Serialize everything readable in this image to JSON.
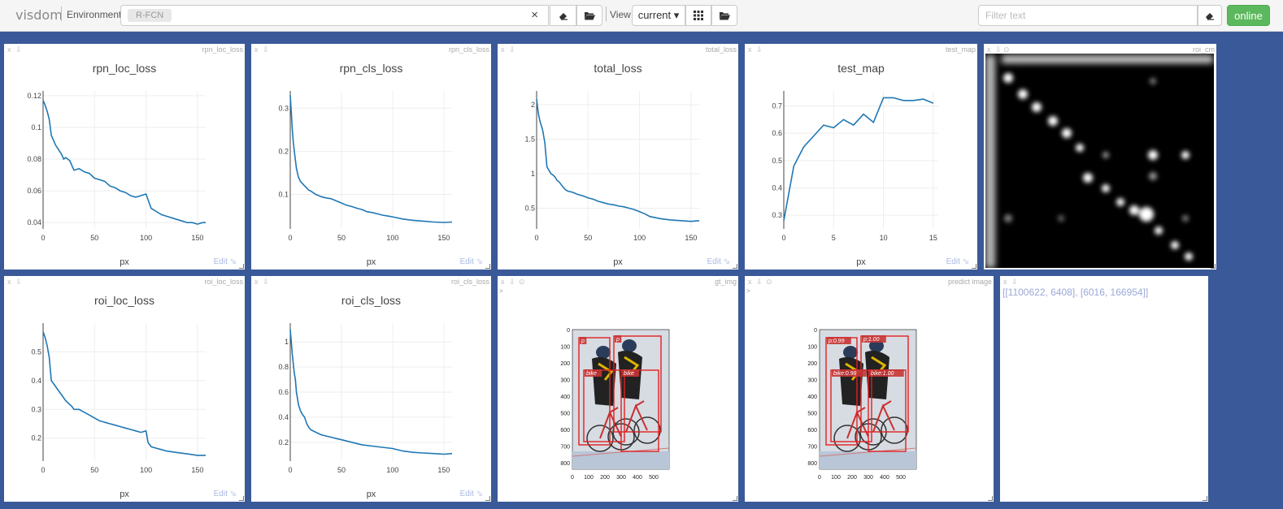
{
  "topbar": {
    "brand": "visdom",
    "env_label": "Environment",
    "env_chip": "R-FCN",
    "clear_symbol": "×",
    "view_label": "View",
    "view_value": "current ▾",
    "filter_placeholder": "Filter text",
    "online_label": "online"
  },
  "pane_controls": {
    "close": "x",
    "download": "⇩",
    "reset": "⊙",
    "edit": "Edit ⬂",
    "arrow": ">"
  },
  "charts": [
    {
      "id": "rpn_loc_loss",
      "title": "rpn_loc_loss",
      "xlabel": "px",
      "x_ticks": [
        0,
        50,
        100,
        150
      ],
      "y_ticks": [
        0.04,
        0.06,
        0.08,
        0.1,
        0.12
      ],
      "y_tick_labels": [
        "0.04",
        "0.06",
        "0.08",
        "0.1",
        "0.12"
      ],
      "xlim": [
        0,
        158
      ],
      "ylim": [
        0.036,
        0.123
      ],
      "chart_data": {
        "type": "line",
        "x": [
          0,
          2,
          4,
          6,
          8,
          10,
          12,
          14,
          16,
          18,
          20,
          22,
          24,
          26,
          28,
          30,
          35,
          40,
          45,
          50,
          55,
          60,
          65,
          70,
          75,
          80,
          85,
          90,
          95,
          100,
          105,
          110,
          115,
          120,
          125,
          130,
          135,
          140,
          145,
          150,
          155,
          158
        ],
        "y": [
          0.117,
          0.114,
          0.11,
          0.105,
          0.095,
          0.092,
          0.089,
          0.087,
          0.085,
          0.083,
          0.08,
          0.081,
          0.08,
          0.079,
          0.076,
          0.073,
          0.074,
          0.072,
          0.071,
          0.068,
          0.067,
          0.066,
          0.063,
          0.062,
          0.06,
          0.059,
          0.057,
          0.056,
          0.057,
          0.058,
          0.049,
          0.047,
          0.045,
          0.044,
          0.043,
          0.042,
          0.041,
          0.04,
          0.04,
          0.039,
          0.04,
          0.04
        ]
      }
    },
    {
      "id": "rpn_cls_loss",
      "title": "rpn_cls_loss",
      "xlabel": "px",
      "x_ticks": [
        0,
        50,
        100,
        150
      ],
      "y_ticks": [
        0.1,
        0.2,
        0.3
      ],
      "y_tick_labels": [
        "0.1",
        "0.2",
        "0.3"
      ],
      "xlim": [
        0,
        158
      ],
      "ylim": [
        0.02,
        0.34
      ],
      "chart_data": {
        "type": "line",
        "x": [
          0,
          1,
          2,
          3,
          4,
          5,
          6,
          8,
          10,
          12,
          14,
          16,
          18,
          20,
          25,
          30,
          35,
          40,
          45,
          50,
          55,
          60,
          65,
          70,
          75,
          80,
          85,
          90,
          95,
          100,
          110,
          120,
          130,
          140,
          150,
          158
        ],
        "y": [
          0.33,
          0.29,
          0.25,
          0.22,
          0.2,
          0.18,
          0.16,
          0.14,
          0.13,
          0.125,
          0.12,
          0.115,
          0.11,
          0.108,
          0.1,
          0.095,
          0.092,
          0.09,
          0.085,
          0.08,
          0.075,
          0.072,
          0.068,
          0.065,
          0.06,
          0.058,
          0.055,
          0.052,
          0.05,
          0.048,
          0.043,
          0.04,
          0.038,
          0.036,
          0.035,
          0.036
        ]
      }
    },
    {
      "id": "total_loss",
      "title": "total_loss",
      "xlabel": "px",
      "x_ticks": [
        0,
        50,
        100,
        150
      ],
      "y_ticks": [
        0.5,
        1,
        1.5,
        2
      ],
      "y_tick_labels": [
        "0.5",
        "1",
        "1.5",
        "2"
      ],
      "xlim": [
        0,
        158
      ],
      "ylim": [
        0.2,
        2.2
      ],
      "chart_data": {
        "type": "line",
        "x": [
          0,
          1,
          2,
          3,
          4,
          5,
          6,
          8,
          10,
          12,
          14,
          16,
          18,
          20,
          22,
          25,
          28,
          30,
          35,
          40,
          45,
          50,
          55,
          60,
          65,
          70,
          75,
          80,
          85,
          90,
          95,
          100,
          105,
          110,
          120,
          130,
          140,
          150,
          158
        ],
        "y": [
          2.08,
          1.95,
          1.85,
          1.78,
          1.72,
          1.68,
          1.62,
          1.45,
          1.1,
          1.05,
          1.0,
          0.98,
          0.95,
          0.9,
          0.88,
          0.82,
          0.77,
          0.75,
          0.73,
          0.7,
          0.68,
          0.65,
          0.63,
          0.6,
          0.58,
          0.56,
          0.55,
          0.53,
          0.52,
          0.5,
          0.48,
          0.45,
          0.42,
          0.38,
          0.35,
          0.33,
          0.32,
          0.31,
          0.32
        ]
      }
    },
    {
      "id": "test_map",
      "title": "test_map",
      "xlabel": "px",
      "x_ticks": [
        0,
        5,
        10,
        15
      ],
      "y_ticks": [
        0.3,
        0.4,
        0.5,
        0.6,
        0.7
      ],
      "y_tick_labels": [
        "0.3",
        "0.4",
        "0.5",
        "0.6",
        "0.7"
      ],
      "xlim": [
        0,
        15.5
      ],
      "ylim": [
        0.25,
        0.755
      ],
      "chart_data": {
        "type": "line",
        "x": [
          0,
          1,
          2,
          3,
          4,
          5,
          6,
          7,
          8,
          9,
          10,
          11,
          12,
          13,
          14,
          15
        ],
        "y": [
          0.28,
          0.48,
          0.55,
          0.59,
          0.63,
          0.62,
          0.65,
          0.63,
          0.67,
          0.64,
          0.73,
          0.73,
          0.72,
          0.72,
          0.725,
          0.71
        ]
      }
    },
    {
      "id": "roi_loc_loss",
      "title": "roi_loc_loss",
      "xlabel": "px",
      "x_ticks": [
        0,
        50,
        100,
        150
      ],
      "y_ticks": [
        0.2,
        0.3,
        0.4,
        0.5
      ],
      "y_tick_labels": [
        "0.2",
        "0.3",
        "0.4",
        "0.5"
      ],
      "xlim": [
        0,
        158
      ],
      "ylim": [
        0.12,
        0.6
      ],
      "chart_data": {
        "type": "line",
        "x": [
          0,
          2,
          4,
          6,
          8,
          10,
          12,
          14,
          16,
          18,
          20,
          22,
          25,
          28,
          30,
          35,
          40,
          45,
          50,
          55,
          60,
          65,
          70,
          75,
          80,
          85,
          90,
          95,
          100,
          102,
          105,
          110,
          115,
          120,
          130,
          140,
          150,
          158
        ],
        "y": [
          0.57,
          0.55,
          0.52,
          0.48,
          0.4,
          0.39,
          0.38,
          0.37,
          0.36,
          0.35,
          0.34,
          0.33,
          0.32,
          0.31,
          0.3,
          0.3,
          0.29,
          0.28,
          0.27,
          0.26,
          0.255,
          0.25,
          0.245,
          0.24,
          0.235,
          0.23,
          0.225,
          0.22,
          0.225,
          0.185,
          0.17,
          0.165,
          0.16,
          0.155,
          0.15,
          0.145,
          0.14,
          0.14
        ]
      }
    },
    {
      "id": "roi_cls_loss",
      "title": "roi_cls_loss",
      "xlabel": "px",
      "x_ticks": [
        0,
        50,
        100,
        150
      ],
      "y_ticks": [
        0.2,
        0.4,
        0.6,
        0.8,
        1
      ],
      "y_tick_labels": [
        "0.2",
        "0.4",
        "0.6",
        "0.8",
        "1"
      ],
      "xlim": [
        0,
        158
      ],
      "ylim": [
        0.05,
        1.15
      ],
      "chart_data": {
        "type": "line",
        "x": [
          0,
          1,
          2,
          3,
          4,
          5,
          6,
          8,
          10,
          12,
          14,
          16,
          18,
          20,
          25,
          30,
          35,
          40,
          45,
          50,
          60,
          70,
          80,
          90,
          100,
          110,
          120,
          130,
          140,
          150,
          158
        ],
        "y": [
          1.1,
          1.0,
          0.9,
          0.82,
          0.75,
          0.7,
          0.6,
          0.5,
          0.45,
          0.42,
          0.4,
          0.35,
          0.32,
          0.3,
          0.28,
          0.26,
          0.25,
          0.24,
          0.23,
          0.22,
          0.2,
          0.18,
          0.17,
          0.16,
          0.15,
          0.13,
          0.12,
          0.115,
          0.11,
          0.105,
          0.11
        ]
      }
    }
  ],
  "panes": {
    "roi_cm": {
      "title": "roi_cm"
    },
    "gt_img": {
      "title": "gt_img",
      "x_ticks": [
        "0",
        "100",
        "200",
        "300",
        "400",
        "500"
      ],
      "y_ticks": [
        "0",
        "100",
        "200",
        "300",
        "400",
        "500",
        "600",
        "700",
        "800"
      ],
      "labels": [
        "p",
        "p",
        "bike",
        "bike"
      ]
    },
    "predict_img": {
      "title": "predict image",
      "x_ticks": [
        "0",
        "100",
        "200",
        "300",
        "400",
        "500"
      ],
      "y_ticks": [
        "0",
        "100",
        "200",
        "300",
        "400",
        "500",
        "600",
        "700",
        "800"
      ],
      "labels": [
        "p:0.99",
        "p:1.00",
        "bike:0.98",
        "bike:1.00"
      ]
    },
    "text": {
      "content": "[[1100622, 6408], [6016, 166954]]"
    }
  },
  "colors": {
    "accent": "#1f77b4",
    "background": "#3a5998",
    "online": "#5cb85c"
  }
}
